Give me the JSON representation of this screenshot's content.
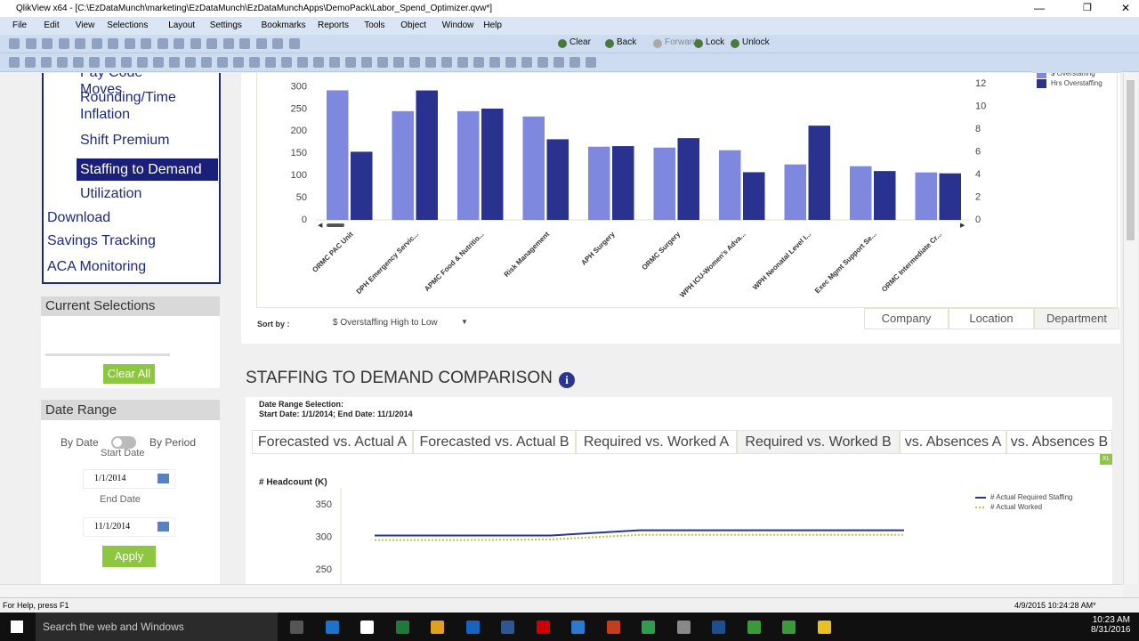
{
  "window": {
    "title": "QlikView x64 - [C:\\EzDataMunch\\marketing\\EzDataMunch\\EzDataMunchApps\\DemoPack\\Labor_Spend_Optimizer.qvw*]"
  },
  "menu": [
    "File",
    "Edit",
    "View",
    "Selections",
    "Layout",
    "Settings",
    "Bookmarks",
    "Reports",
    "Tools",
    "Object",
    "Window",
    "Help"
  ],
  "toolbar": [
    "Clear",
    "Back",
    "Forward",
    "Lock",
    "Unlock"
  ],
  "sidebar": {
    "sub_nav": [
      "Pay Code Moves",
      "Rounding/Time Inflation",
      "Shift Premium",
      "Staffing to Demand",
      "Utilization"
    ],
    "nav": [
      "Download",
      "Savings Tracking",
      "ACA Monitoring"
    ],
    "current_selections": {
      "title": "Current Selections",
      "button": "Clear All"
    },
    "date_range": {
      "title": "Date Range",
      "by_date": "By Date",
      "by_period": "By Period",
      "start_label": "Start Date",
      "start": "1/1/2014",
      "end_label": "End Date",
      "end": "11/1/2014",
      "button": "Apply"
    }
  },
  "chart_data": [
    {
      "type": "bar",
      "categories": [
        "ORMC PAC Unit",
        "DPH Emergency Servic...",
        "APMC Food & Nutritio...",
        "Risk Management",
        "APH Surgery",
        "ORMC Surgery",
        "WPH ICU-Women's Adva...",
        "WPH Neonatal Level I...",
        "Exec Mgmt Support Se...",
        "ORMC Intermediate Cr..."
      ],
      "series": [
        {
          "name": "$ Overstaffing",
          "color": "#7f88df",
          "values": [
            292,
            245,
            245,
            233,
            165,
            163,
            157,
            125,
            121,
            107
          ]
        },
        {
          "name": "Hrs Overstaffing",
          "color": "#29328e",
          "axis": "y2",
          "values": [
            6.0,
            11.4,
            9.8,
            7.1,
            6.5,
            7.2,
            4.2,
            8.3,
            4.3,
            4.1
          ]
        }
      ],
      "ylim": [
        0,
        325
      ],
      "yticks": [
        0,
        50,
        100,
        150,
        200,
        250,
        300
      ],
      "y2lim": [
        0,
        12.7
      ],
      "y2ticks": [
        0,
        2,
        4,
        6,
        8,
        10,
        12
      ],
      "legend": "top-right"
    },
    {
      "type": "line",
      "y_label": "# Headcount (K)",
      "categories": [
        null,
        null,
        null,
        null,
        null,
        null,
        null
      ],
      "series": [
        {
          "name": "# Actual Required Staffing",
          "color": "#2b3590",
          "values": [
            303,
            303,
            303,
            311,
            311,
            311,
            311
          ]
        },
        {
          "name": "# Actual Worked",
          "color": "#b5c94a",
          "values": [
            296,
            296,
            297,
            304,
            304,
            304,
            304
          ]
        }
      ],
      "ylim": [
        230,
        380
      ],
      "yticks": [
        250,
        300,
        350
      ],
      "legend": "top-right"
    }
  ],
  "sort": {
    "label": "Sort by :",
    "value": "$ Overstaffing High to Low"
  },
  "view_tabs": [
    "Company",
    "Location",
    "Department"
  ],
  "section": {
    "title": "STAFFING TO DEMAND COMPARISON",
    "date_note": "Date Range Selection:",
    "date_text": "Start Date: 1/1/2014;  End Date: 11/1/2014"
  },
  "comparison_tabs": [
    "Forecasted vs. Actual A",
    "Forecasted vs. Actual B",
    "Required vs. Worked A",
    "Required vs. Worked B",
    "vs. Absences A",
    "vs. Absences B"
  ],
  "comparison_badge": "XL",
  "status": {
    "help": "For Help, press F1",
    "timestamp": "4/9/2015 10:24:28 AM*"
  },
  "taskbar": {
    "search": "Search the web and Windows",
    "time": "10:23 AM",
    "date": "8/31/2016"
  }
}
